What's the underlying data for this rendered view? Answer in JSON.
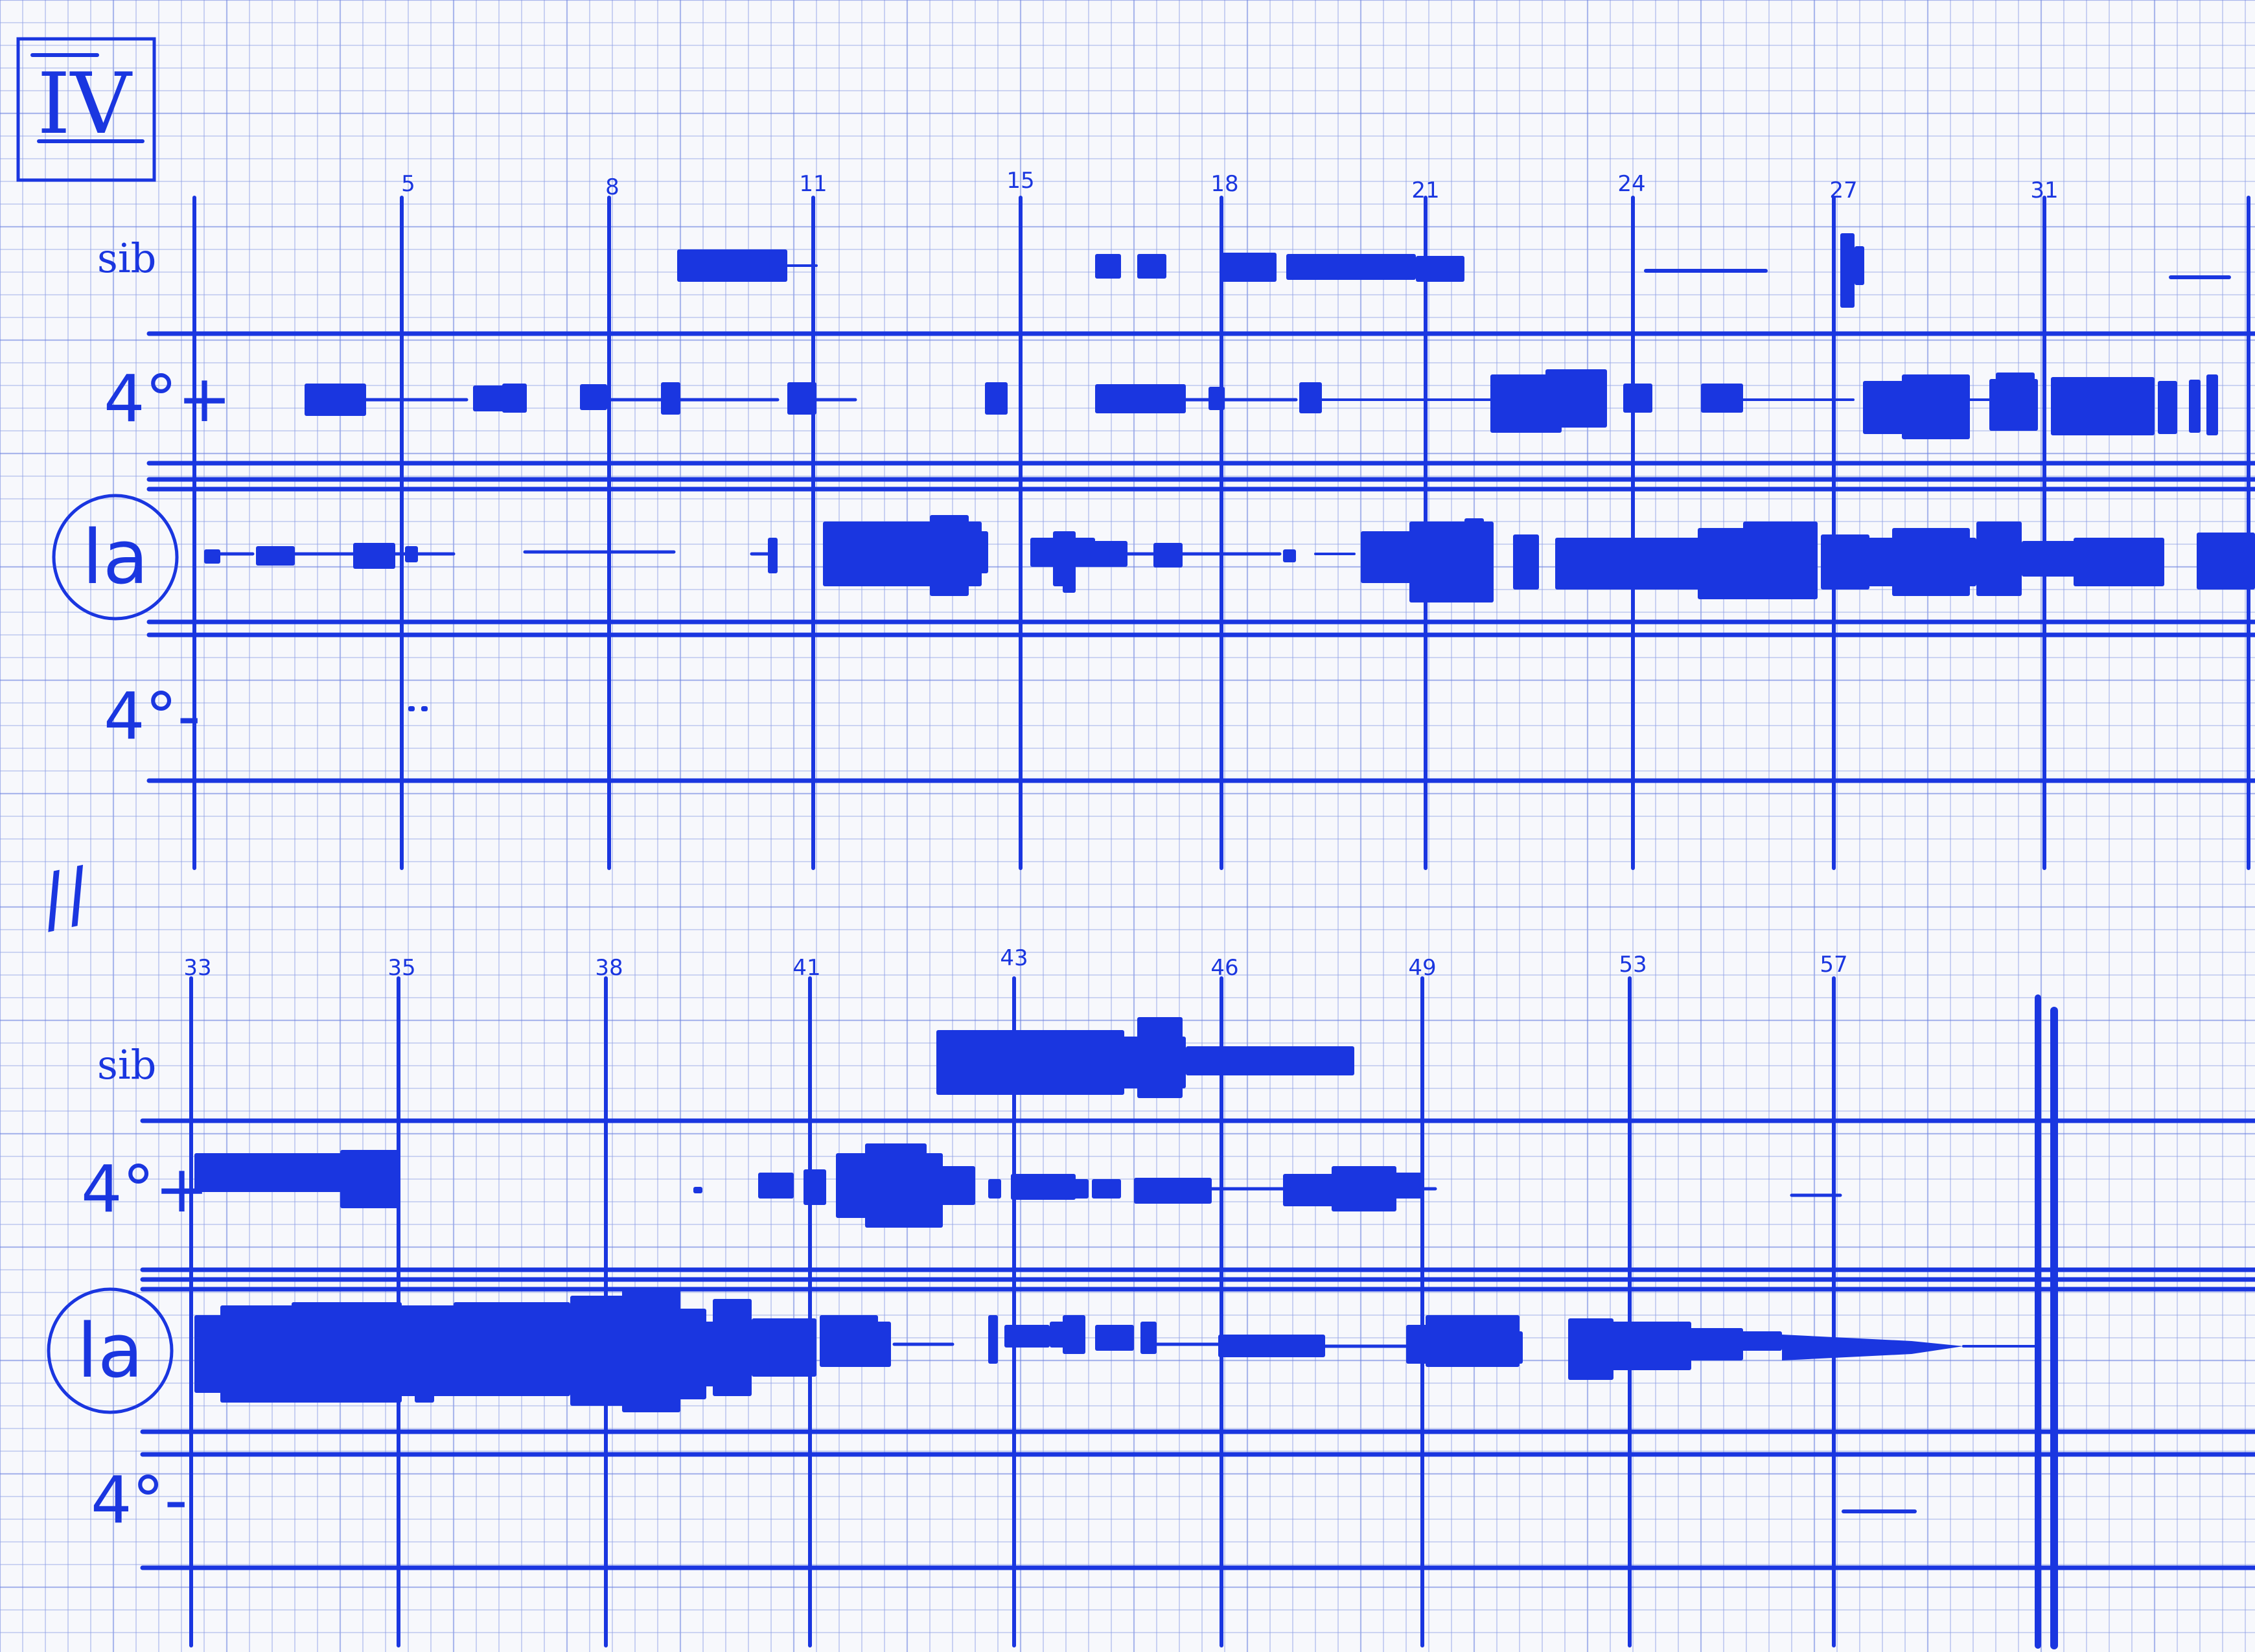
{
  "section_label": "IV",
  "section_break_mark": "//",
  "colors": {
    "ink": "#1a36e0",
    "grid": "#8fa0e6",
    "paper": "#f7f8fc"
  },
  "instrument_labels": {
    "sib": "sib",
    "four_plus": "4°+",
    "la": "la",
    "four_minus": "4°-"
  },
  "systems": [
    {
      "measure_numbers": [
        "5",
        "8",
        "11",
        "15",
        "18",
        "21",
        "24",
        "27",
        "31"
      ]
    },
    {
      "measure_numbers": [
        "33",
        "35",
        "38",
        "41",
        "43",
        "46",
        "49",
        "53",
        "57"
      ]
    }
  ]
}
